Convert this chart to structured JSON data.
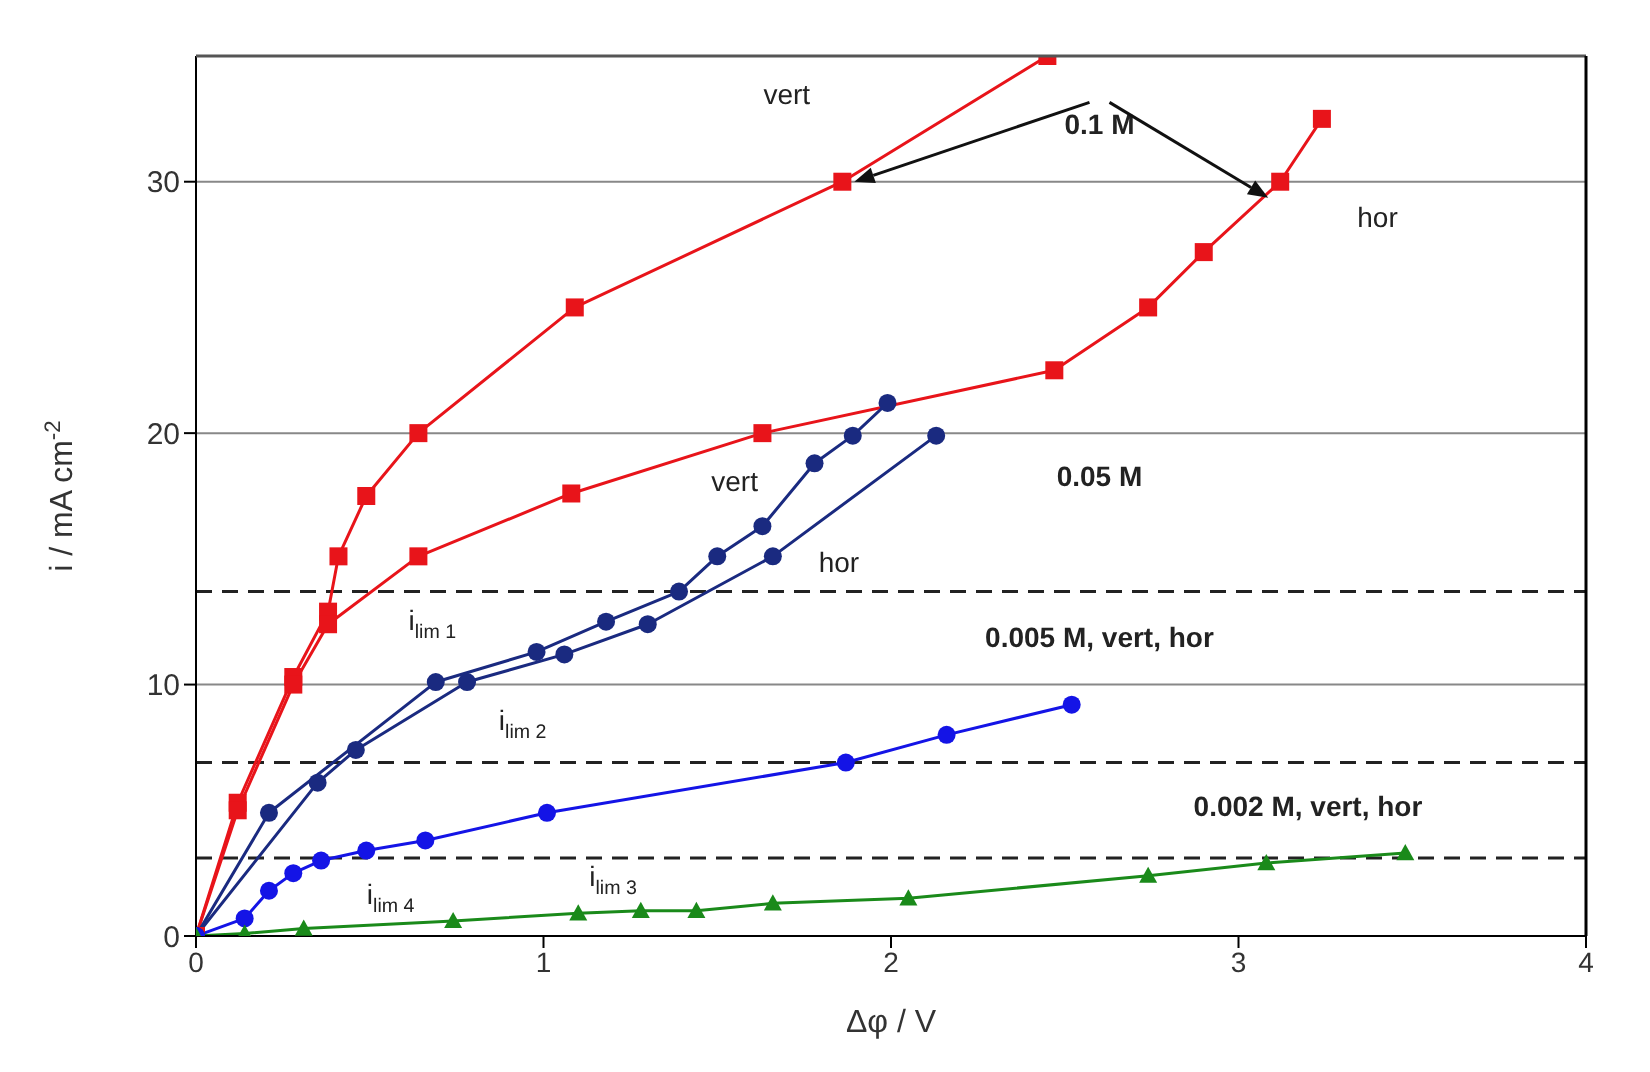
{
  "chart_data": {
    "type": "line",
    "xlabel": "Δφ / V",
    "ylabel": "i / mA cm$^{-2}$",
    "xlim": [
      0,
      4
    ],
    "xticks": [
      0,
      1,
      2,
      3,
      4
    ],
    "ylim": [
      0,
      35
    ],
    "yticks": [
      0,
      10,
      20,
      30
    ],
    "grid": "y",
    "line_style": "solid",
    "series": [
      {
        "color": "#e8141a",
        "marker": "square",
        "x": [
          0,
          0.12,
          0.28,
          0.38,
          0.41,
          0.49,
          0.64,
          1.09,
          1.86,
          2.45
        ],
        "values": [
          0,
          5.3,
          10.3,
          12.9,
          15.1,
          17.5,
          20.0,
          25.0,
          30.0,
          35.0
        ]
      },
      {
        "color": "#e8141a",
        "marker": "square",
        "x": [
          0,
          0.12,
          0.28,
          0.38,
          0.64,
          1.08,
          1.63,
          2.47,
          2.74,
          2.9,
          3.12,
          3.24
        ],
        "values": [
          0,
          5.0,
          10.0,
          12.4,
          15.1,
          17.6,
          20.0,
          22.5,
          25.0,
          27.2,
          30.0,
          32.5
        ]
      },
      {
        "color": "#1a2a80",
        "marker": "circle",
        "x": [
          0,
          0.21,
          0.69,
          0.98,
          1.18,
          1.39,
          1.5,
          1.63,
          1.78,
          1.89,
          1.99
        ],
        "values": [
          0,
          4.9,
          10.1,
          11.3,
          12.5,
          13.7,
          15.1,
          16.3,
          18.8,
          19.9,
          21.2
        ]
      },
      {
        "color": "#1a2a80",
        "marker": "circle",
        "x": [
          0,
          0.35,
          0.46,
          0.78,
          1.06,
          1.3,
          1.66,
          2.13
        ],
        "values": [
          0,
          6.1,
          7.4,
          10.1,
          11.2,
          12.4,
          15.1,
          19.9
        ]
      },
      {
        "color": "#1414e6",
        "marker": "circle",
        "x": [
          0,
          0.14,
          0.21,
          0.28,
          0.36,
          0.49,
          0.66,
          1.01,
          1.87,
          2.16,
          2.52
        ],
        "values": [
          0,
          0.7,
          1.8,
          2.5,
          3.0,
          3.4,
          3.8,
          4.9,
          6.9,
          8.0,
          9.2
        ]
      },
      {
        "color": "#1a8a1a",
        "marker": "triangle",
        "x": [
          0,
          0.14,
          0.31,
          0.74,
          1.1,
          1.28,
          1.44,
          1.66,
          2.05,
          2.74,
          3.08,
          3.48
        ],
        "values": [
          0,
          0.1,
          0.3,
          0.6,
          0.9,
          1.0,
          1.0,
          1.3,
          1.5,
          2.4,
          2.9,
          3.3
        ]
      }
    ],
    "ref_lines": [
      {
        "axis": "y",
        "value": 13.7,
        "color": "#222222",
        "line_style": "dashed"
      },
      {
        "axis": "y",
        "value": 6.9,
        "color": "#222222",
        "line_style": "dashed"
      },
      {
        "axis": "y",
        "value": 3.1,
        "color": "#222222",
        "line_style": "dashed"
      }
    ],
    "annotations": [
      "vert",
      "0.1 M",
      "hor",
      "vert",
      "0.05 M",
      "hor",
      "0.005 M, vert, hor",
      "0.002 M, vert, hor",
      "i$_{lim 1}$",
      "i$_{lim 2}$",
      "i$_{lim 3}$",
      "i$_{lim 4}$"
    ]
  }
}
